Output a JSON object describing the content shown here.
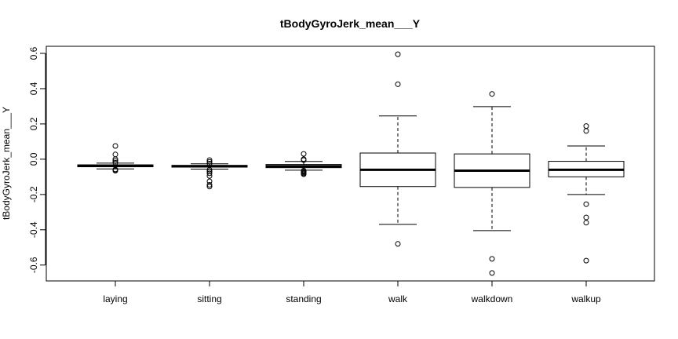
{
  "chart_data": {
    "type": "box",
    "title": "tBodyGyroJerk_mean___Y",
    "xlabel": "",
    "ylabel": "tBodyGyroJerk_mean___Y",
    "categories": [
      "laying",
      "sitting",
      "standing",
      "walk",
      "walkdown",
      "walkup"
    ],
    "ylim": [
      -0.69,
      0.64
    ],
    "yticks": [
      -0.6,
      -0.4,
      -0.2,
      0.0,
      0.2,
      0.4,
      0.6
    ],
    "ytick_labels": [
      "-0.6",
      "-0.4",
      "-0.2",
      "0.0",
      "0.2",
      "0.4",
      "0.6"
    ],
    "boxes": [
      {
        "name": "laying",
        "whisker_low": -0.055,
        "q1": -0.043,
        "median": -0.037,
        "q3": -0.032,
        "whisker_high": -0.022,
        "outliers": [
          0.075,
          0.027,
          0.0,
          -0.01,
          -0.02,
          -0.06,
          -0.065,
          -0.058
        ]
      },
      {
        "name": "sitting",
        "whisker_low": -0.056,
        "q1": -0.045,
        "median": -0.04,
        "q3": -0.035,
        "whisker_high": -0.026,
        "outliers": [
          -0.005,
          -0.015,
          -0.025,
          -0.06,
          -0.07,
          -0.08,
          -0.095,
          -0.125,
          -0.145,
          -0.155
        ]
      },
      {
        "name": "standing",
        "whisker_low": -0.062,
        "q1": -0.048,
        "median": -0.04,
        "q3": -0.03,
        "whisker_high": -0.013,
        "outliers": [
          0.03,
          0.0,
          -0.005,
          -0.065,
          -0.07,
          -0.075,
          -0.08,
          -0.085
        ]
      },
      {
        "name": "walk",
        "whisker_low": -0.37,
        "q1": -0.155,
        "median": -0.06,
        "q3": 0.035,
        "whisker_high": 0.245,
        "outliers": [
          0.595,
          0.425,
          -0.48
        ]
      },
      {
        "name": "walkdown",
        "whisker_low": -0.405,
        "q1": -0.16,
        "median": -0.065,
        "q3": 0.03,
        "whisker_high": 0.298,
        "outliers": [
          0.37,
          -0.565,
          -0.645
        ]
      },
      {
        "name": "walkup",
        "whisker_low": -0.2,
        "q1": -0.1,
        "median": -0.06,
        "q3": -0.012,
        "whisker_high": 0.075,
        "outliers": [
          0.188,
          0.16,
          -0.255,
          -0.33,
          -0.36,
          -0.575
        ]
      }
    ],
    "grid": false,
    "legend": "none"
  }
}
